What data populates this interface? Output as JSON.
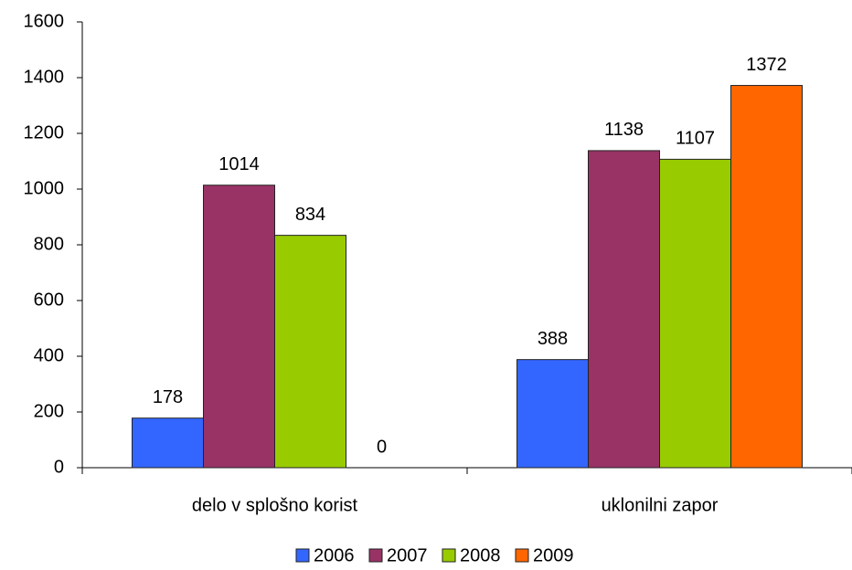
{
  "chart_data": {
    "type": "bar",
    "categories": [
      "delo v splošno korist",
      "uklonilni zapor"
    ],
    "series": [
      {
        "name": "2006",
        "color": "#3366ff",
        "values": [
          178,
          388
        ]
      },
      {
        "name": "2007",
        "color": "#993366",
        "values": [
          1014,
          1138
        ]
      },
      {
        "name": "2008",
        "color": "#99cc00",
        "values": [
          834,
          1107
        ]
      },
      {
        "name": "2009",
        "color": "#ff6600",
        "values": [
          0,
          1372
        ]
      }
    ],
    "ylim": [
      0,
      1600
    ],
    "yticks": [
      0,
      200,
      400,
      600,
      800,
      1000,
      1200,
      1400,
      1600
    ],
    "grid": false,
    "legend": "bottom"
  }
}
